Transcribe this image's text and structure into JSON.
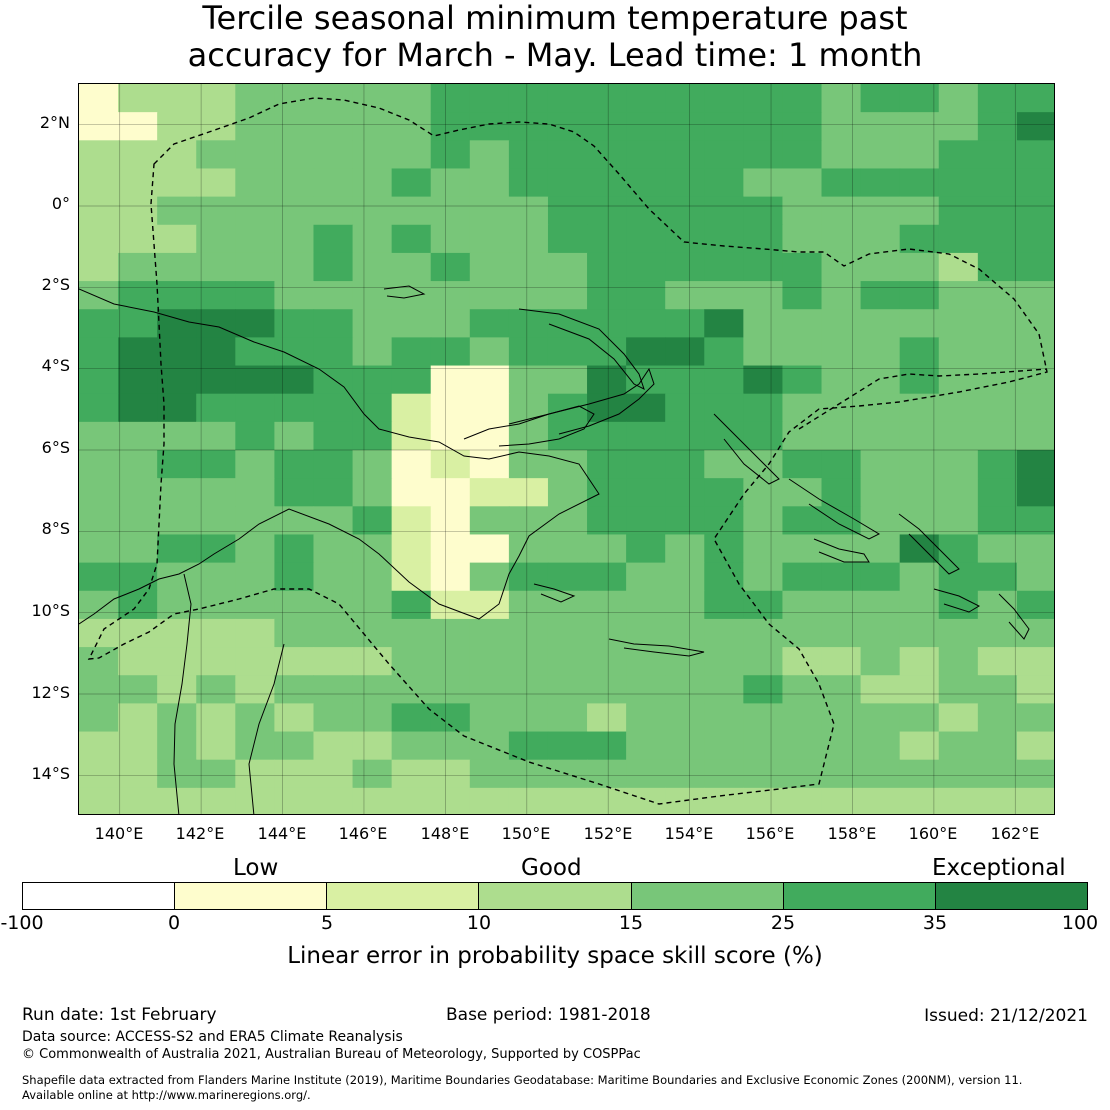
{
  "title": {
    "line1": "Tercile seasonal minimum temperature past",
    "line2": "accuracy for March - May. Lead time: 1 month"
  },
  "map": {
    "lat_labels": [
      "2°N",
      "0°",
      "2°S",
      "4°S",
      "6°S",
      "8°S",
      "10°S",
      "12°S",
      "14°S"
    ],
    "lon_labels": [
      "140°E",
      "142°E",
      "144°E",
      "146°E",
      "148°E",
      "150°E",
      "152°E",
      "154°E",
      "156°E",
      "158°E",
      "160°E",
      "162°E"
    ],
    "extent": {
      "lon": [
        139.0,
        163.0
      ],
      "lat": [
        -15.0,
        3.0
      ]
    },
    "grid_note": "skill class per 0.8° cell, classes 0..6 map to colorbar segments"
  },
  "colorbar": {
    "categories": [
      "Low",
      "Good",
      "Exceptional"
    ],
    "ticks": [
      "-100",
      "0",
      "5",
      "10",
      "15",
      "25",
      "35",
      "100"
    ],
    "colors": [
      "#ffffff",
      "#fefdcd",
      "#d9f0a3",
      "#addd8e",
      "#78c679",
      "#41ab5d",
      "#238443"
    ],
    "label": "Linear error in probability space skill score (%)"
  },
  "footer": {
    "run_date": "Run date: 1st February",
    "base_period": "Base period: 1981-2018",
    "issued": "Issued: 21/12/2021",
    "data_source": "Data source: ACCESS-S2 and ERA5 Climate Reanalysis",
    "copyright": "© Commonwealth of Australia 2021, Australian Bureau of Meteorology, Supported by COSPPac",
    "shapefile_line1": "Shapefile data extracted from Flanders Marine Institute (2019), Maritime Boundaries Geodatabase: Maritime Boundaries and Exclusive Economic Zones (200NM), version 11.",
    "shapefile_line2": "Available online at http://www.marineregions.org/."
  },
  "chart_data": {
    "type": "heatmap",
    "title": "Tercile seasonal minimum temperature past accuracy for March - May. Lead time: 1 month",
    "xlabel": "",
    "ylabel": "",
    "colorbar_label": "Linear error in probability space skill score (%)",
    "class_bounds": [
      -100,
      0,
      5,
      10,
      15,
      25,
      35,
      100
    ],
    "rows": [
      "1333444445555555555455455",
      "1133444445555555555444456",
      "3334444445455555555444555",
      "3333444454455555544555555",
      "3344444444445555554444555",
      "3334445454445555554445555",
      "3444445445444555555444355",
      "4555544444444554445455444",
      "5566655444555555644444444",
      "5666555455455566544445444",
      "5666665551144655565445444",
      "5665555521145665554444444",
      "4444545521145555554444444",
      "4455455412144555445544456",
      "4444455411224555544544456",
      "4444444521444555545544455",
      "4455454421144454544446544",
      "5544454421455544545554554",
      "4544444452244444554444545",
      "3333344444444444444444444",
      "4333333344444444443343433",
      "4434344444444444454433443",
      "4343434455444344444444344",
      "3343443344455544444443443",
      "3344333433444444444444444",
      "3333333333333333333333333"
    ]
  }
}
